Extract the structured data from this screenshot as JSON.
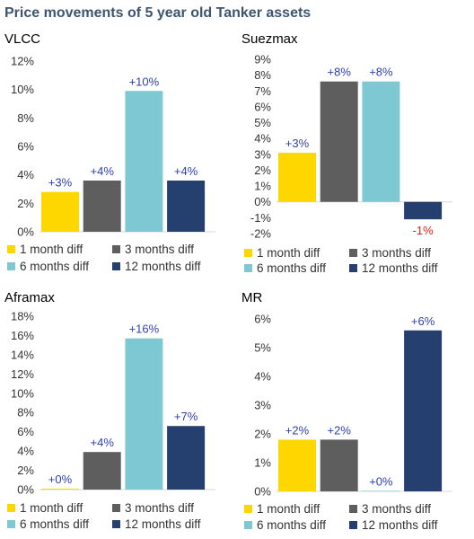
{
  "title": "Price movements of 5 year old Tanker assets",
  "colors": {
    "1 month diff": "#ffd700",
    "3 months diff": "#5e5e5e",
    "6 months diff": "#7ec8d4",
    "12 months diff": "#253f6e",
    "label_positive": "#2e3fb3",
    "label_negative": "#e02020"
  },
  "chart_data": [
    {
      "type": "bar",
      "title": "VLCC",
      "categories": [
        "1 month diff",
        "3 months diff",
        "6 months diff",
        "12 months diff"
      ],
      "values": [
        2.8,
        3.6,
        9.9,
        3.6
      ],
      "data_labels": [
        "+3%",
        "+4%",
        "+10%",
        "+4%"
      ],
      "ylim": [
        0,
        12
      ],
      "yticks": [
        "0%",
        "2%",
        "4%",
        "6%",
        "8%",
        "10%",
        "12%"
      ],
      "legend": "bottom"
    },
    {
      "type": "bar",
      "title": "Suezmax",
      "categories": [
        "1 month diff",
        "3 months diff",
        "6 months diff",
        "12 months diff"
      ],
      "values": [
        3.1,
        7.6,
        7.6,
        -1.1
      ],
      "data_labels": [
        "+3%",
        "+8%",
        "+8%",
        "-1%"
      ],
      "ylim": [
        -2,
        9
      ],
      "yticks": [
        "-2%",
        "-1%",
        "0%",
        "1%",
        "2%",
        "3%",
        "4%",
        "5%",
        "6%",
        "7%",
        "8%",
        "9%"
      ],
      "legend": "bottom"
    },
    {
      "type": "bar",
      "title": "Aframax",
      "categories": [
        "1 month diff",
        "3 months diff",
        "6 months diff",
        "12 months diff"
      ],
      "values": [
        0.1,
        3.9,
        15.7,
        6.6
      ],
      "data_labels": [
        "+0%",
        "+4%",
        "+16%",
        "+7%"
      ],
      "ylim": [
        0,
        18
      ],
      "yticks": [
        "0%",
        "2%",
        "4%",
        "6%",
        "8%",
        "10%",
        "12%",
        "14%",
        "16%",
        "18%"
      ],
      "legend": "bottom"
    },
    {
      "type": "bar",
      "title": "MR",
      "categories": [
        "1 month diff",
        "3 months diff",
        "6 months diff",
        "12 months diff"
      ],
      "values": [
        1.8,
        1.8,
        0.02,
        5.6
      ],
      "data_labels": [
        "+2%",
        "+2%",
        "+0%",
        "+6%"
      ],
      "ylim": [
        0,
        6
      ],
      "yticks": [
        "0%",
        "1%",
        "2%",
        "3%",
        "4%",
        "5%",
        "6%"
      ],
      "legend": "bottom"
    }
  ]
}
